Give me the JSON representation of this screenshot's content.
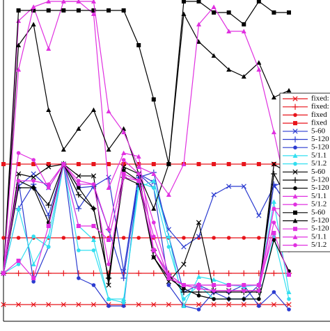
{
  "chart_data": {
    "type": "line",
    "ylim": [
      0,
      462
    ],
    "xlim": [
      0,
      19
    ],
    "series": [
      {
        "name": "fixed:",
        "color": "#e8141b",
        "marker": "x",
        "values": [
          24,
          24,
          24,
          24,
          24,
          24,
          24,
          24,
          24,
          24,
          24,
          24,
          24,
          24,
          24,
          24,
          24,
          24,
          24,
          24
        ]
      },
      {
        "name": "fixed:",
        "color": "#e8141b",
        "marker": "plus",
        "values": [
          69,
          69,
          69,
          69,
          69,
          69,
          69,
          69,
          69,
          69,
          69,
          69,
          69,
          69,
          69,
          69,
          69,
          69,
          69,
          69
        ]
      },
      {
        "name": "fixed",
        "color": "#e8141b",
        "marker": "dot",
        "values": [
          120,
          120,
          120,
          120,
          120,
          120,
          120,
          120,
          120,
          120,
          120,
          120,
          120,
          120,
          120,
          120,
          120,
          120,
          120,
          120
        ]
      },
      {
        "name": "fixed",
        "color": "#e8141b",
        "marker": "square",
        "values": [
          226,
          226,
          226,
          226,
          226,
          226,
          226,
          226,
          226,
          226,
          226,
          226,
          226,
          226,
          226,
          226,
          226,
          226,
          226,
          226
        ]
      },
      {
        "name": "5-60",
        "color": "#2b3bd0",
        "marker": "x",
        "values": [
          69,
          194,
          212,
          192,
          226,
          192,
          194,
          207,
          72,
          212,
          200,
          132,
          107,
          122,
          182,
          194,
          194,
          152,
          194,
          204
        ]
      },
      {
        "name": "5-120",
        "color": "#2b3bd0",
        "marker": "plus",
        "values": [
          69,
          162,
          197,
          152,
          226,
          162,
          194,
          132,
          62,
          207,
          214,
          122,
          42,
          52,
          42,
          32,
          32,
          52,
          197,
          162
        ]
      },
      {
        "name": "5-120",
        "color": "#2b3bd0",
        "marker": "dot",
        "values": [
          69,
          202,
          57,
          107,
          226,
          62,
          52,
          22,
          22,
          212,
          192,
          52,
          22,
          17,
          42,
          42,
          52,
          22,
          42,
          17
        ]
      },
      {
        "name": "5/1.1",
        "color": "#33dff0",
        "marker": "tri",
        "values": [
          69,
          162,
          82,
          122,
          226,
          137,
          117,
          32,
          32,
          192,
          202,
          122,
          22,
          64,
          60,
          52,
          50,
          52,
          172,
          42
        ]
      },
      {
        "name": "5/1.2",
        "color": "#33dff0",
        "marker": "dot",
        "values": [
          69,
          82,
          122,
          107,
          226,
          102,
          102,
          32,
          27,
          200,
          192,
          107,
          32,
          52,
          32,
          32,
          32,
          32,
          122,
          32
        ]
      },
      {
        "name": "5-60",
        "color": "#000000",
        "marker": "x",
        "values": [
          69,
          212,
          207,
          222,
          226,
          209,
          209,
          52,
          222,
          212,
          92,
          57,
          82,
          142,
          44,
          44,
          44,
          44,
          226,
          212
        ]
      },
      {
        "name": "5-120",
        "color": "#000000",
        "marker": "plus",
        "values": [
          69,
          192,
          192,
          167,
          226,
          182,
          162,
          62,
          207,
          197,
          102,
          67,
          42,
          42,
          42,
          42,
          42,
          42,
          212,
          172
        ]
      },
      {
        "name": "5-120",
        "color": "#000000",
        "marker": "dot",
        "values": [
          69,
          202,
          192,
          142,
          226,
          192,
          162,
          62,
          217,
          202,
          92,
          62,
          47,
          37,
          32,
          32,
          32,
          32,
          117,
          72
        ]
      },
      {
        "name": "5/1.1",
        "color": "#e030e0",
        "marker": "tri",
        "values": [
          69,
          432,
          452,
          392,
          460,
          460,
          442,
          192,
          242,
          237,
          102,
          62,
          52,
          52,
          52,
          52,
          52,
          52,
          162,
          162
        ]
      },
      {
        "name": "5/1.2",
        "color": "#e030e0",
        "marker": "dot",
        "values": [
          69,
          202,
          202,
          197,
          226,
          202,
          197,
          82,
          207,
          202,
          122,
          62,
          52,
          47,
          44,
          44,
          44,
          44,
          162,
          132
        ]
      },
      {
        "name": "5-60",
        "color": "#000000",
        "marker": "square",
        "values": [
          69,
          447,
          447,
          447,
          447,
          447,
          447,
          447,
          447,
          397,
          319,
          226,
          460,
          460,
          444,
          444,
          427,
          460,
          444,
          444
        ]
      },
      {
        "name": "5-120",
        "color": "#000000",
        "marker": "tri",
        "values": [
          69,
          397,
          427,
          304,
          247,
          277,
          304,
          247,
          277,
          212,
          162,
          226,
          442,
          402,
          382,
          362,
          352,
          372,
          322,
          332
        ]
      },
      {
        "name": "5-120",
        "color": "#e030e0",
        "marker": "square",
        "values": [
          69,
          87,
          62,
          137,
          226,
          137,
          137,
          117,
          212,
          202,
          102,
          67,
          52,
          52,
          52,
          52,
          52,
          52,
          127,
          67
        ]
      },
      {
        "name": "5/1.1",
        "color": "#e030e0",
        "marker": "tri",
        "values": [
          69,
          362,
          452,
          460,
          460,
          460,
          460,
          302,
          272,
          222,
          212,
          182,
          226,
          427,
          452,
          417,
          417,
          362,
          272,
          172
        ]
      },
      {
        "name": "5/1.2",
        "color": "#e030e0",
        "marker": "dot",
        "values": [
          69,
          242,
          232,
          192,
          226,
          197,
          197,
          132,
          232,
          212,
          142,
          67,
          52,
          47,
          44,
          44,
          44,
          44,
          142,
          102
        ]
      }
    ]
  }
}
